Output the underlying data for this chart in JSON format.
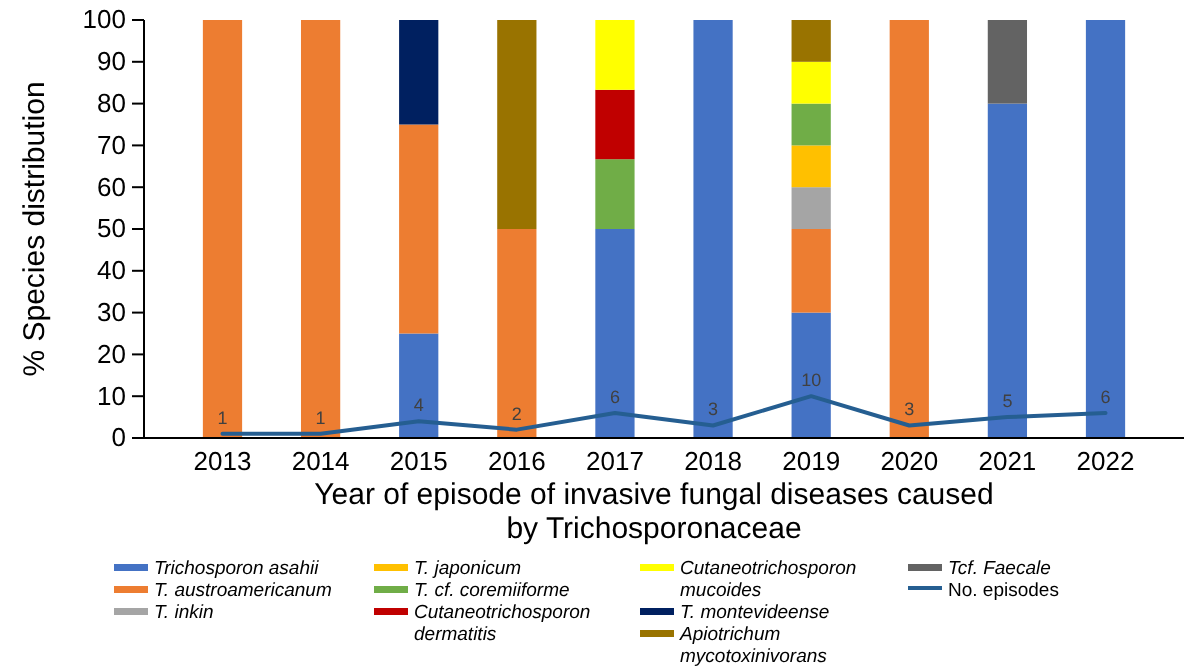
{
  "chart_data": {
    "type": "bar",
    "stacked": true,
    "ylabel": "% Species distribution",
    "xlabel": "Year of episode of invasive fungal diseases caused by Trichosporonaceae",
    "categories": [
      "2013",
      "2014",
      "2015",
      "2016",
      "2017",
      "2018",
      "2019",
      "2020",
      "2021",
      "2022"
    ],
    "ylim": [
      0,
      100
    ],
    "yticks": [
      0,
      10,
      20,
      30,
      40,
      50,
      60,
      70,
      80,
      90,
      100
    ],
    "legend": "bottom",
    "series": [
      {
        "name": "Trichosporon asahii",
        "color": "#4472c4",
        "values": [
          0,
          0,
          25,
          0,
          50,
          100,
          30,
          0,
          80,
          100
        ]
      },
      {
        "name": "T. austroamericanum",
        "color": "#ed7d31",
        "values": [
          100,
          100,
          50,
          50,
          0,
          0,
          20,
          100,
          0,
          0
        ]
      },
      {
        "name": "T. inkin",
        "color": "#a5a5a5",
        "values": [
          0,
          0,
          0,
          0,
          0,
          0,
          10,
          0,
          0,
          0
        ]
      },
      {
        "name": "T. japonicum",
        "color": "#ffc000",
        "values": [
          0,
          0,
          0,
          0,
          0,
          0,
          10,
          0,
          0,
          0
        ]
      },
      {
        "name": "T. cf. coremiiforme",
        "color": "#70ad47",
        "values": [
          0,
          0,
          0,
          0,
          16.7,
          0,
          10,
          0,
          0,
          0
        ]
      },
      {
        "name": "Cutaneotrichosporon dermatitis",
        "color": "#c00000",
        "values": [
          0,
          0,
          0,
          0,
          16.6,
          0,
          0,
          0,
          0,
          0
        ]
      },
      {
        "name": "Cutaneotrichosporon mucoides",
        "color": "#ffff00",
        "values": [
          0,
          0,
          0,
          0,
          16.7,
          0,
          10,
          0,
          0,
          0
        ]
      },
      {
        "name": "T. montevideense",
        "color": "#002060",
        "values": [
          0,
          0,
          25,
          0,
          0,
          0,
          0,
          0,
          0,
          0
        ]
      },
      {
        "name": "Apiotrichum mycotoxinivorans",
        "color": "#997300",
        "values": [
          0,
          0,
          0,
          50,
          0,
          0,
          10,
          0,
          0,
          0
        ]
      },
      {
        "name": "Tcf. Faecale",
        "color": "#636363",
        "values": [
          0,
          0,
          0,
          0,
          0,
          0,
          0,
          0,
          20,
          0
        ]
      },
      {
        "name": "No. episodes",
        "type": "line",
        "color": "#255e91",
        "values": [
          1,
          1,
          4,
          2,
          6,
          3,
          10,
          3,
          5,
          6
        ],
        "value_labels": [
          "1",
          "1",
          "4",
          "2",
          "6",
          "3",
          "10",
          "3",
          "5",
          "6"
        ]
      }
    ]
  }
}
